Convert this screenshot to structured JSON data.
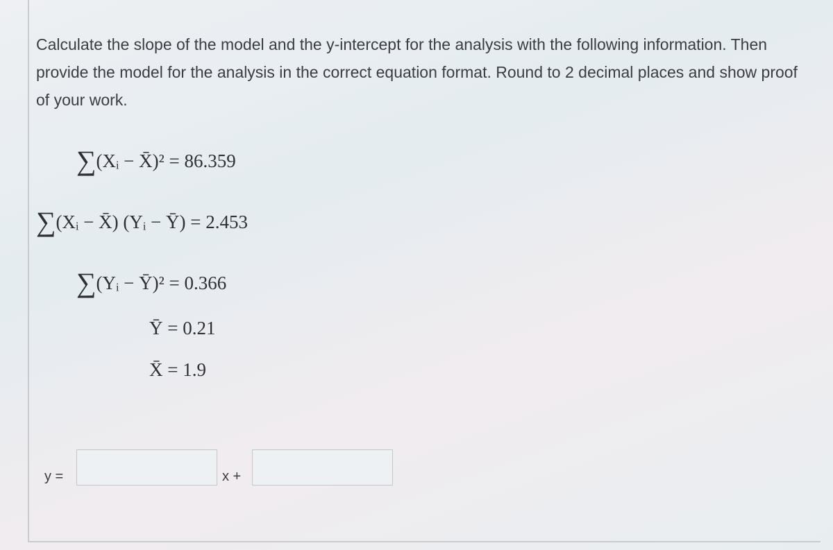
{
  "question": "Calculate the slope of the model and the y-intercept for the analysis with the following information. Then provide the model for the analysis in the correct equation format. Round to 2 decimal places and show proof of your work.",
  "formulas": [
    {
      "sigma": "∑",
      "text": "(Xᵢ − X̄)² = 86.359"
    },
    {
      "sigma": "∑",
      "text": "(Xᵢ − X̄) (Yᵢ − Ȳ) = 2.453"
    },
    {
      "sigma": "∑",
      "text": "(Yᵢ − Ȳ)² = 0.366"
    },
    {
      "text": "Ȳ = 0.21"
    },
    {
      "text": "X̄ = 1.9"
    }
  ],
  "answer": {
    "y_label": "y =",
    "x_label": "x +"
  }
}
